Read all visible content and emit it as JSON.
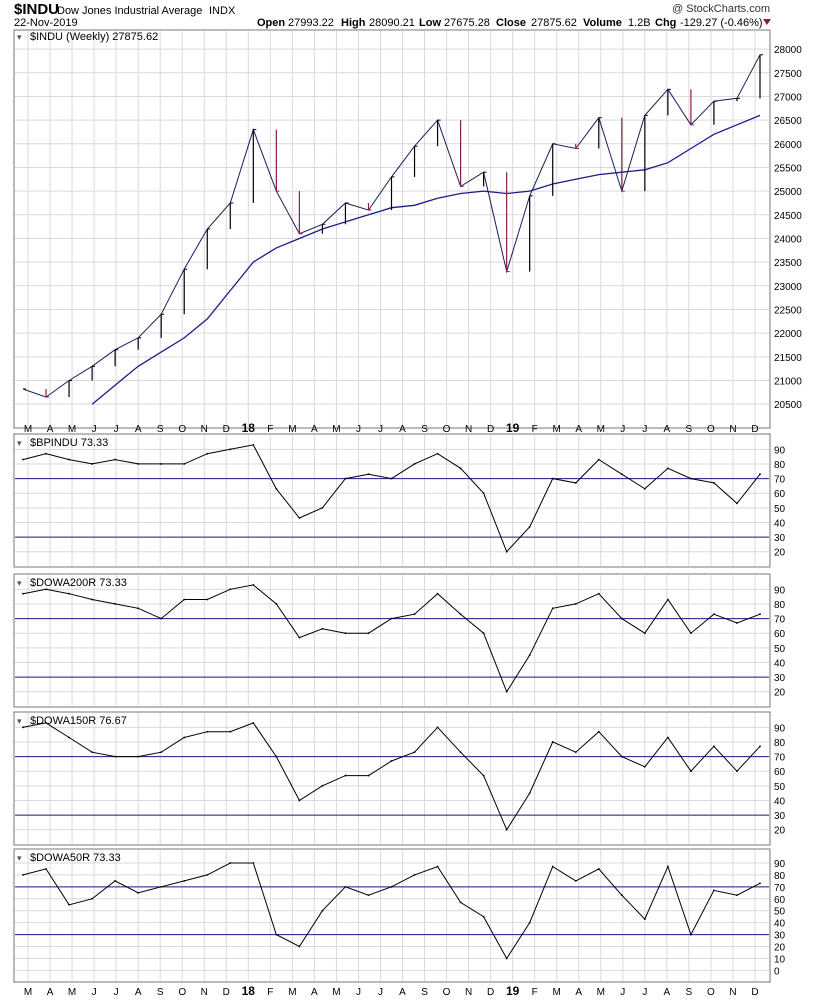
{
  "header": {
    "ticker": "$INDU",
    "name": "Dow Jones Industrial Average",
    "exchange": "INDX",
    "date": "22-Nov-2019",
    "watermark": "@ StockCharts.com",
    "open_label": "Open",
    "open": "27993.22",
    "high_label": "High",
    "high": "28090.21",
    "low_label": "Low",
    "low": "27675.28",
    "close_label": "Close",
    "close": "27875.62",
    "volume_label": "Volume",
    "volume": "1.2B",
    "chg_label": "Chg",
    "chg": "-129.27 (-0.46%)"
  },
  "colors": {
    "price_up": "#000000",
    "price_down": "#8b1a4a",
    "ma": "#1c1c8c",
    "ref_line": "#1c1c8c",
    "grid": "#d9d9d9"
  },
  "x_axis_labels": [
    "M",
    "A",
    "M",
    "J",
    "J",
    "A",
    "S",
    "O",
    "N",
    "D",
    "18",
    "F",
    "M",
    "A",
    "M",
    "J",
    "J",
    "A",
    "S",
    "O",
    "N",
    "D",
    "19",
    "F",
    "M",
    "A",
    "M",
    "J",
    "J",
    "A",
    "S",
    "O",
    "N",
    "D"
  ],
  "chart_data": [
    {
      "type": "line",
      "title": "$INDU (Weekly) 27875.62",
      "interval": "weekly",
      "y_ticks": [
        20500,
        21000,
        21500,
        22000,
        22500,
        23000,
        23500,
        24000,
        24500,
        25000,
        25500,
        26000,
        26500,
        27000,
        27500,
        28000
      ],
      "ylim": [
        20250,
        28150
      ],
      "x": [
        "2017-03",
        "2017-04",
        "2017-05",
        "2017-06",
        "2017-07",
        "2017-08",
        "2017-09",
        "2017-10",
        "2017-11",
        "2017-12",
        "2018-01",
        "2018-02",
        "2018-03",
        "2018-04",
        "2018-05",
        "2018-06",
        "2018-07",
        "2018-08",
        "2018-09",
        "2018-10",
        "2018-11",
        "2018-12",
        "2019-01",
        "2019-02",
        "2019-03",
        "2019-04",
        "2019-05",
        "2019-06",
        "2019-07",
        "2019-08",
        "2019-09",
        "2019-10",
        "2019-11"
      ],
      "series": [
        {
          "values": [
            20820,
            20650,
            21000,
            21300,
            21650,
            21900,
            22400,
            23350,
            24200,
            24750,
            26300,
            25000,
            24100,
            24300,
            24750,
            24600,
            25300,
            25950,
            26500,
            25100,
            25400,
            23300,
            24900,
            26000,
            25900,
            26550,
            25000,
            26600,
            27150,
            26400,
            26900,
            26960,
            27880
          ]
        },
        {
          "values": [
            null,
            null,
            null,
            20500,
            20900,
            21300,
            21600,
            21900,
            22300,
            22900,
            23500,
            23800,
            24000,
            24200,
            24350,
            24500,
            24650,
            24700,
            24850,
            24950,
            25000,
            24950,
            25000,
            25150,
            25250,
            25350,
            25400,
            25450,
            25600,
            25900,
            26200,
            26400,
            26600
          ]
        }
      ]
    },
    {
      "type": "line",
      "title": "$BPINDU 73.33",
      "y_ticks": [
        20,
        30,
        40,
        50,
        60,
        70,
        80,
        90
      ],
      "ylim": [
        15,
        95
      ],
      "reference_lines": [
        70,
        30
      ],
      "x": [
        "2017-03",
        "2017-04",
        "2017-05",
        "2017-06",
        "2017-07",
        "2017-08",
        "2017-09",
        "2017-10",
        "2017-11",
        "2017-12",
        "2018-01",
        "2018-02",
        "2018-03",
        "2018-04",
        "2018-05",
        "2018-06",
        "2018-07",
        "2018-08",
        "2018-09",
        "2018-10",
        "2018-11",
        "2018-12",
        "2019-01",
        "2019-02",
        "2019-03",
        "2019-04",
        "2019-05",
        "2019-06",
        "2019-07",
        "2019-08",
        "2019-09",
        "2019-10",
        "2019-11"
      ],
      "series": [
        {
          "values": [
            83,
            87,
            83,
            80,
            83,
            80,
            80,
            80,
            87,
            90,
            93,
            63,
            43,
            50,
            70,
            73,
            70,
            80,
            87,
            77,
            60,
            20,
            37,
            70,
            67,
            83,
            73,
            63,
            77,
            70,
            67,
            53,
            73
          ]
        }
      ]
    },
    {
      "type": "line",
      "title": "$DOWA200R 73.33",
      "y_ticks": [
        20,
        30,
        40,
        50,
        60,
        70,
        80,
        90
      ],
      "ylim": [
        15,
        95
      ],
      "reference_lines": [
        70,
        30
      ],
      "x": [
        "2017-03",
        "2017-04",
        "2017-05",
        "2017-06",
        "2017-07",
        "2017-08",
        "2017-09",
        "2017-10",
        "2017-11",
        "2017-12",
        "2018-01",
        "2018-02",
        "2018-03",
        "2018-04",
        "2018-05",
        "2018-06",
        "2018-07",
        "2018-08",
        "2018-09",
        "2018-10",
        "2018-11",
        "2018-12",
        "2019-01",
        "2019-02",
        "2019-03",
        "2019-04",
        "2019-05",
        "2019-06",
        "2019-07",
        "2019-08",
        "2019-09",
        "2019-10",
        "2019-11"
      ],
      "series": [
        {
          "values": [
            87,
            90,
            87,
            83,
            80,
            77,
            70,
            83,
            83,
            90,
            93,
            80,
            57,
            63,
            60,
            60,
            70,
            73,
            87,
            73,
            60,
            20,
            45,
            77,
            80,
            87,
            70,
            60,
            83,
            60,
            73,
            67,
            73
          ]
        }
      ]
    },
    {
      "type": "line",
      "title": "$DOWA150R 76.67",
      "y_ticks": [
        20,
        30,
        40,
        50,
        60,
        70,
        80,
        90
      ],
      "ylim": [
        15,
        95
      ],
      "reference_lines": [
        70,
        30
      ],
      "x": [
        "2017-03",
        "2017-04",
        "2017-05",
        "2017-06",
        "2017-07",
        "2017-08",
        "2017-09",
        "2017-10",
        "2017-11",
        "2017-12",
        "2018-01",
        "2018-02",
        "2018-03",
        "2018-04",
        "2018-05",
        "2018-06",
        "2018-07",
        "2018-08",
        "2018-09",
        "2018-10",
        "2018-11",
        "2018-12",
        "2019-01",
        "2019-02",
        "2019-03",
        "2019-04",
        "2019-05",
        "2019-06",
        "2019-07",
        "2019-08",
        "2019-09",
        "2019-10",
        "2019-11"
      ],
      "series": [
        {
          "values": [
            90,
            93,
            83,
            73,
            70,
            70,
            73,
            83,
            87,
            87,
            93,
            70,
            40,
            50,
            57,
            57,
            67,
            73,
            90,
            73,
            57,
            20,
            45,
            80,
            73,
            87,
            70,
            63,
            83,
            60,
            77,
            60,
            77
          ]
        }
      ]
    },
    {
      "type": "line",
      "title": "$DOWA50R 73.33",
      "y_ticks": [
        0,
        10,
        20,
        30,
        40,
        50,
        60,
        70,
        80,
        90
      ],
      "ylim": [
        -3,
        95
      ],
      "reference_lines": [
        70,
        30
      ],
      "x": [
        "2017-03",
        "2017-04",
        "2017-05",
        "2017-06",
        "2017-07",
        "2017-08",
        "2017-09",
        "2017-10",
        "2017-11",
        "2017-12",
        "2018-01",
        "2018-02",
        "2018-03",
        "2018-04",
        "2018-05",
        "2018-06",
        "2018-07",
        "2018-08",
        "2018-09",
        "2018-10",
        "2018-11",
        "2018-12",
        "2019-01",
        "2019-02",
        "2019-03",
        "2019-04",
        "2019-05",
        "2019-06",
        "2019-07",
        "2019-08",
        "2019-09",
        "2019-10",
        "2019-11"
      ],
      "series": [
        {
          "values": [
            80,
            85,
            55,
            60,
            75,
            65,
            70,
            75,
            80,
            90,
            90,
            30,
            20,
            50,
            70,
            63,
            70,
            80,
            87,
            57,
            45,
            10,
            40,
            87,
            75,
            85,
            63,
            43,
            87,
            30,
            67,
            63,
            73
          ]
        }
      ]
    }
  ]
}
